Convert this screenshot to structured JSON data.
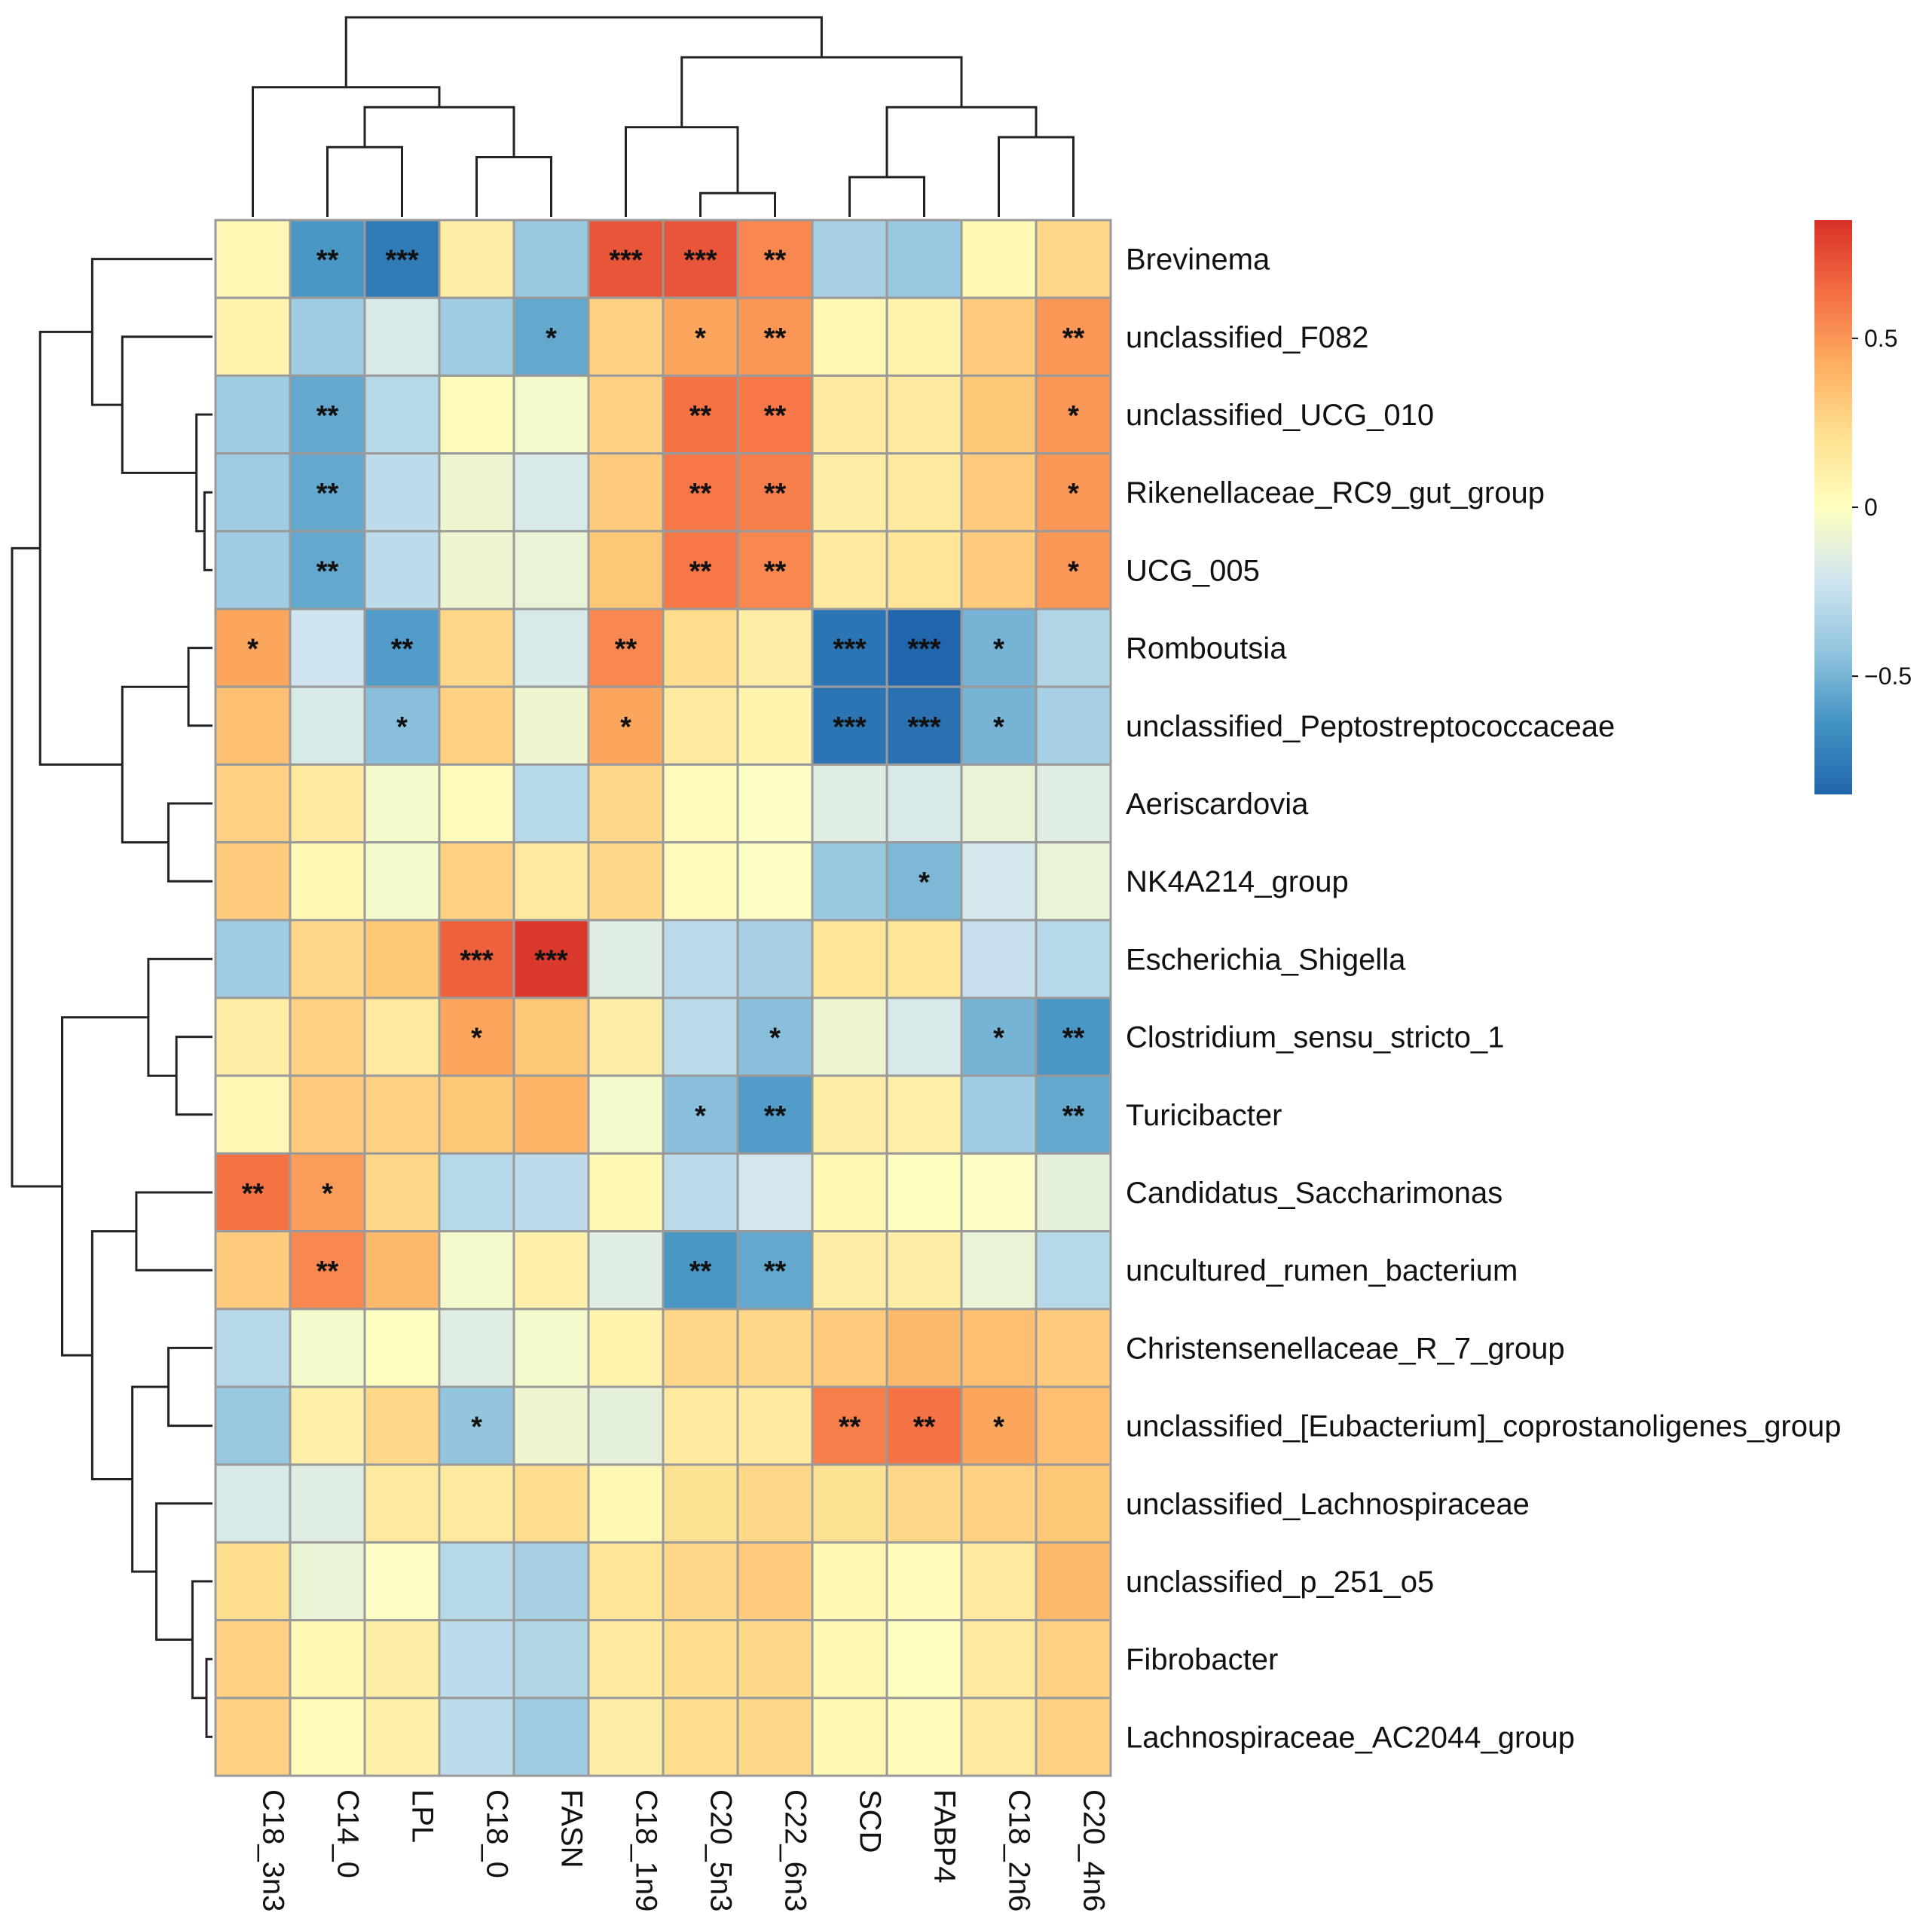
{
  "chart_data": {
    "type": "heatmap",
    "title": "",
    "columns": [
      "C18_3n3",
      "C14_0",
      "LPL",
      "C18_0",
      "FASN",
      "C18_1n9",
      "C20_5n3",
      "C22_6n3",
      "SCD",
      "FABP4",
      "C18_2n6",
      "C20_4n6"
    ],
    "rows": [
      "Brevinema",
      "unclassified_F082",
      "unclassified_UCG_010",
      "Rikenellaceae_RC9_gut_group",
      "UCG_005",
      "Romboutsia",
      "unclassified_Peptostreptococcaceae",
      "Aeriscardovia",
      "NK4A214_group",
      "Escherichia_Shigella",
      "Clostridium_sensu_stricto_1",
      "Turicibacter",
      "Candidatus_Saccharimonas",
      "uncultured_rumen_bacterium",
      "Christensenellaceae_R_7_group",
      "unclassified_[Eubacterium]_coprostanoligenes_group",
      "unclassified_Lachnospiraceae",
      "unclassified_p_251_o5",
      "Fibrobacter",
      "Lachnospiraceae_AC2044_group"
    ],
    "values": [
      [
        0.05,
        -0.62,
        -0.75,
        0.12,
        -0.4,
        0.72,
        0.72,
        0.55,
        -0.35,
        -0.4,
        0.05,
        0.25
      ],
      [
        0.08,
        -0.38,
        -0.18,
        -0.38,
        -0.55,
        0.28,
        0.45,
        0.5,
        0.05,
        0.08,
        0.3,
        0.5
      ],
      [
        -0.38,
        -0.55,
        -0.3,
        0.02,
        -0.05,
        0.28,
        0.62,
        0.6,
        0.15,
        0.15,
        0.32,
        0.5
      ],
      [
        -0.38,
        -0.55,
        -0.28,
        -0.08,
        -0.18,
        0.3,
        0.6,
        0.58,
        0.12,
        0.15,
        0.3,
        0.5
      ],
      [
        -0.38,
        -0.55,
        -0.28,
        -0.08,
        -0.1,
        0.32,
        0.6,
        0.55,
        0.15,
        0.18,
        0.3,
        0.5
      ],
      [
        0.45,
        -0.22,
        -0.6,
        0.25,
        -0.18,
        0.55,
        0.22,
        0.12,
        -0.78,
        -0.85,
        -0.5,
        -0.32
      ],
      [
        0.35,
        -0.18,
        -0.45,
        0.28,
        -0.08,
        0.45,
        0.15,
        0.08,
        -0.78,
        -0.8,
        -0.5,
        -0.35
      ],
      [
        0.28,
        0.15,
        -0.05,
        0.02,
        -0.3,
        0.25,
        0.02,
        -0.02,
        -0.15,
        -0.18,
        -0.1,
        -0.15
      ],
      [
        0.3,
        0.05,
        -0.05,
        0.28,
        0.15,
        0.25,
        0.02,
        -0.02,
        -0.4,
        -0.48,
        -0.2,
        -0.1
      ],
      [
        -0.38,
        0.25,
        0.32,
        0.68,
        0.82,
        -0.15,
        -0.28,
        -0.35,
        0.18,
        0.18,
        -0.25,
        -0.3
      ],
      [
        0.12,
        0.28,
        0.15,
        0.45,
        0.32,
        0.12,
        -0.28,
        -0.45,
        -0.08,
        -0.18,
        -0.5,
        -0.62
      ],
      [
        0.05,
        0.3,
        0.28,
        0.32,
        0.4,
        -0.05,
        -0.45,
        -0.6,
        0.12,
        0.1,
        -0.38,
        -0.55
      ],
      [
        0.62,
        0.48,
        0.25,
        -0.3,
        -0.28,
        0.05,
        -0.28,
        -0.2,
        0.05,
        0.0,
        -0.02,
        -0.12
      ],
      [
        0.3,
        0.55,
        0.38,
        -0.05,
        0.1,
        -0.15,
        -0.62,
        -0.55,
        0.12,
        0.12,
        -0.1,
        -0.3
      ],
      [
        -0.3,
        -0.05,
        0.0,
        -0.15,
        -0.05,
        0.08,
        0.25,
        0.25,
        0.3,
        0.38,
        0.35,
        0.3
      ],
      [
        -0.4,
        0.1,
        0.25,
        -0.42,
        -0.08,
        -0.12,
        0.15,
        0.15,
        0.58,
        0.62,
        0.45,
        0.35
      ],
      [
        -0.18,
        -0.15,
        0.15,
        0.15,
        0.22,
        0.05,
        0.2,
        0.25,
        0.2,
        0.25,
        0.28,
        0.32
      ],
      [
        0.22,
        -0.1,
        -0.02,
        -0.3,
        -0.35,
        0.18,
        0.25,
        0.3,
        0.05,
        0.02,
        0.15,
        0.38
      ],
      [
        0.28,
        0.05,
        0.12,
        -0.28,
        -0.32,
        0.15,
        0.22,
        0.25,
        0.05,
        0.0,
        0.15,
        0.28
      ],
      [
        0.28,
        0.02,
        0.1,
        -0.28,
        -0.38,
        0.12,
        0.22,
        0.25,
        0.05,
        0.02,
        0.15,
        0.28
      ]
    ],
    "significance": [
      [
        "",
        "**",
        "***",
        "",
        "",
        "***",
        "***",
        "**",
        "",
        "",
        "",
        ""
      ],
      [
        "",
        "",
        "",
        "",
        "*",
        "",
        "*",
        "**",
        "",
        "",
        "",
        "**"
      ],
      [
        "",
        "**",
        "",
        "",
        "",
        "",
        "**",
        "**",
        "",
        "",
        "",
        "*"
      ],
      [
        "",
        "**",
        "",
        "",
        "",
        "",
        "**",
        "**",
        "",
        "",
        "",
        "*"
      ],
      [
        "",
        "**",
        "",
        "",
        "",
        "",
        "**",
        "**",
        "",
        "",
        "",
        "*"
      ],
      [
        "*",
        "",
        "**",
        "",
        "",
        "**",
        "",
        "",
        "***",
        "***",
        "*",
        ""
      ],
      [
        "",
        "",
        "*",
        "",
        "",
        "*",
        "",
        "",
        "***",
        "***",
        "*",
        ""
      ],
      [
        "",
        "",
        "",
        "",
        "",
        "",
        "",
        "",
        "",
        "",
        "",
        ""
      ],
      [
        "",
        "",
        "",
        "",
        "",
        "",
        "",
        "",
        "",
        "*",
        "",
        ""
      ],
      [
        "",
        "",
        "",
        "***",
        "***",
        "",
        "",
        "",
        "",
        "",
        "",
        ""
      ],
      [
        "",
        "",
        "",
        "*",
        "",
        "",
        "",
        "*",
        "",
        "",
        "*",
        "**"
      ],
      [
        "",
        "",
        "",
        "",
        "",
        "",
        "*",
        "**",
        "",
        "",
        "",
        "**"
      ],
      [
        "**",
        "*",
        "",
        "",
        "",
        "",
        "",
        "",
        "",
        "",
        "",
        ""
      ],
      [
        "",
        "**",
        "",
        "",
        "",
        "",
        "**",
        "**",
        "",
        "",
        "",
        ""
      ],
      [
        "",
        "",
        "",
        "",
        "",
        "",
        "",
        "",
        "",
        "",
        "",
        ""
      ],
      [
        "",
        "",
        "",
        "*",
        "",
        "",
        "",
        "",
        "**",
        "**",
        "*",
        ""
      ],
      [
        "",
        "",
        "",
        "",
        "",
        "",
        "",
        "",
        "",
        "",
        "",
        ""
      ],
      [
        "",
        "",
        "",
        "",
        "",
        "",
        "",
        "",
        "",
        "",
        "",
        ""
      ],
      [
        "",
        "",
        "",
        "",
        "",
        "",
        "",
        "",
        "",
        "",
        "",
        ""
      ],
      [
        "",
        "",
        "",
        "",
        "",
        "",
        "",
        "",
        "",
        "",
        "",
        ""
      ]
    ],
    "color_scale": {
      "min": -0.85,
      "max": 0.85,
      "stops": [
        "#2166ac",
        "#4393c3",
        "#92c5de",
        "#d1e5f0",
        "#ffffbf",
        "#fee090",
        "#fdae61",
        "#f46d43",
        "#d73027"
      ]
    },
    "legend": {
      "ticks": [
        {
          "value": 0.5,
          "label": "0.5"
        },
        {
          "value": 0.0,
          "label": "0"
        },
        {
          "value": -0.5,
          "label": "−0.5"
        }
      ],
      "position": "right"
    },
    "column_dendrogram": [
      {
        "a": 1,
        "b": 2,
        "h": 0.35
      },
      {
        "a": 3,
        "b": 4,
        "h": 0.3
      },
      {
        "a": "n0",
        "b": "n1",
        "h": 0.55
      },
      {
        "a": 0,
        "b": "n2",
        "h": 0.65
      },
      {
        "a": 6,
        "b": 7,
        "h": 0.12
      },
      {
        "a": 5,
        "b": "n4",
        "h": 0.45
      },
      {
        "a": 8,
        "b": 9,
        "h": 0.2
      },
      {
        "a": 10,
        "b": 11,
        "h": 0.4
      },
      {
        "a": "n6",
        "b": "n7",
        "h": 0.55
      },
      {
        "a": "n5",
        "b": "n8",
        "h": 0.8
      },
      {
        "a": "n3",
        "b": "n9",
        "h": 1.0
      }
    ],
    "row_dendrogram": [
      {
        "a": 3,
        "b": 4,
        "h": 0.04
      },
      {
        "a": 2,
        "b": "n0",
        "h": 0.08
      },
      {
        "a": 1,
        "b": "n1",
        "h": 0.45
      },
      {
        "a": 0,
        "b": "n2",
        "h": 0.6
      },
      {
        "a": 5,
        "b": 6,
        "h": 0.12
      },
      {
        "a": 7,
        "b": 8,
        "h": 0.22
      },
      {
        "a": "n4",
        "b": "n5",
        "h": 0.45
      },
      {
        "a": "n3",
        "b": "n6",
        "h": 0.86
      },
      {
        "a": 10,
        "b": 11,
        "h": 0.18
      },
      {
        "a": 9,
        "b": "n8",
        "h": 0.32
      },
      {
        "a": 12,
        "b": 13,
        "h": 0.38
      },
      {
        "a": 18,
        "b": 19,
        "h": 0.03
      },
      {
        "a": 17,
        "b": "n11",
        "h": 0.1
      },
      {
        "a": 16,
        "b": "n12",
        "h": 0.28
      },
      {
        "a": 14,
        "b": 15,
        "h": 0.22
      },
      {
        "a": "n14",
        "b": "n13",
        "h": 0.4
      },
      {
        "a": "n10",
        "b": "n15",
        "h": 0.6
      },
      {
        "a": "n9",
        "b": "n16",
        "h": 0.75
      },
      {
        "a": "n7",
        "b": "n17",
        "h": 1.0
      }
    ]
  }
}
